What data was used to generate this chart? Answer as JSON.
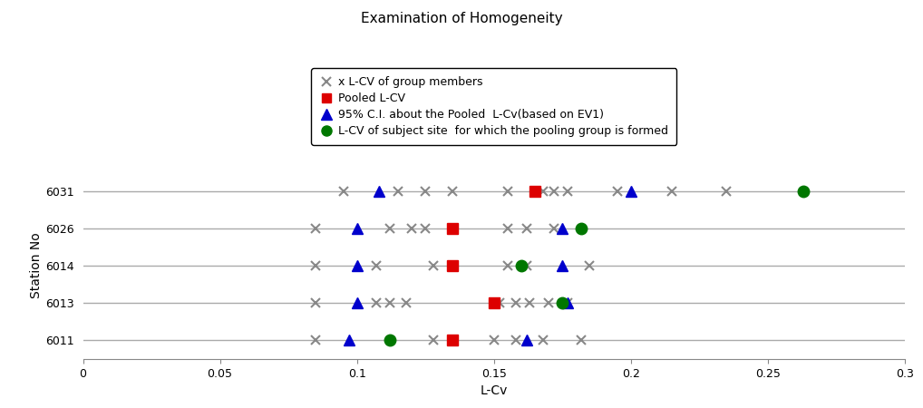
{
  "title": "Examination of Homogeneity",
  "xlabel": "L-Cv",
  "ylabel": "Station No",
  "stations": [
    "6031",
    "6026",
    "6014",
    "6013",
    "6011"
  ],
  "xlim": [
    0,
    0.3
  ],
  "xticks": [
    0,
    0.05,
    0.1,
    0.15,
    0.2,
    0.25,
    0.3
  ],
  "xtick_labels": [
    "0",
    "0.05",
    "0.1",
    "0.15",
    "0.2",
    "0.25",
    "0.3"
  ],
  "x_crosses": {
    "6031": [
      0.095,
      0.115,
      0.125,
      0.135,
      0.155,
      0.168,
      0.172,
      0.177,
      0.195,
      0.215,
      0.235
    ],
    "6026": [
      0.085,
      0.112,
      0.12,
      0.125,
      0.155,
      0.162,
      0.172
    ],
    "6014": [
      0.085,
      0.107,
      0.128,
      0.155,
      0.162,
      0.185
    ],
    "6013": [
      0.085,
      0.107,
      0.112,
      0.118,
      0.152,
      0.158,
      0.163,
      0.17,
      0.177
    ],
    "6011": [
      0.085,
      0.128,
      0.15,
      0.158,
      0.168,
      0.182
    ]
  },
  "pooled_lcv": {
    "6031": 0.165,
    "6026": 0.135,
    "6014": 0.135,
    "6013": 0.15,
    "6011": 0.135
  },
  "ci_lower": {
    "6031": 0.108,
    "6026": 0.1,
    "6014": 0.1,
    "6013": 0.1,
    "6011": 0.097
  },
  "ci_upper": {
    "6031": 0.2,
    "6026": 0.175,
    "6014": 0.175,
    "6013": 0.177,
    "6011": 0.162
  },
  "subject_lcv": {
    "6031": 0.263,
    "6026": 0.182,
    "6014": 0.16,
    "6013": 0.175,
    "6011": 0.112
  },
  "legend_labels": [
    "x L-CV of group members",
    "Pooled L-CV",
    "95% C.I. about the Pooled  L-Cv(based on EV1)",
    "L-CV of subject site  for which the pooling group is formed"
  ],
  "cross_color": "#888888",
  "red_color": "#dd0000",
  "blue_color": "#0000cc",
  "green_color": "#007700",
  "bg_color": "#ffffff",
  "line_color": "#aaaaaa"
}
